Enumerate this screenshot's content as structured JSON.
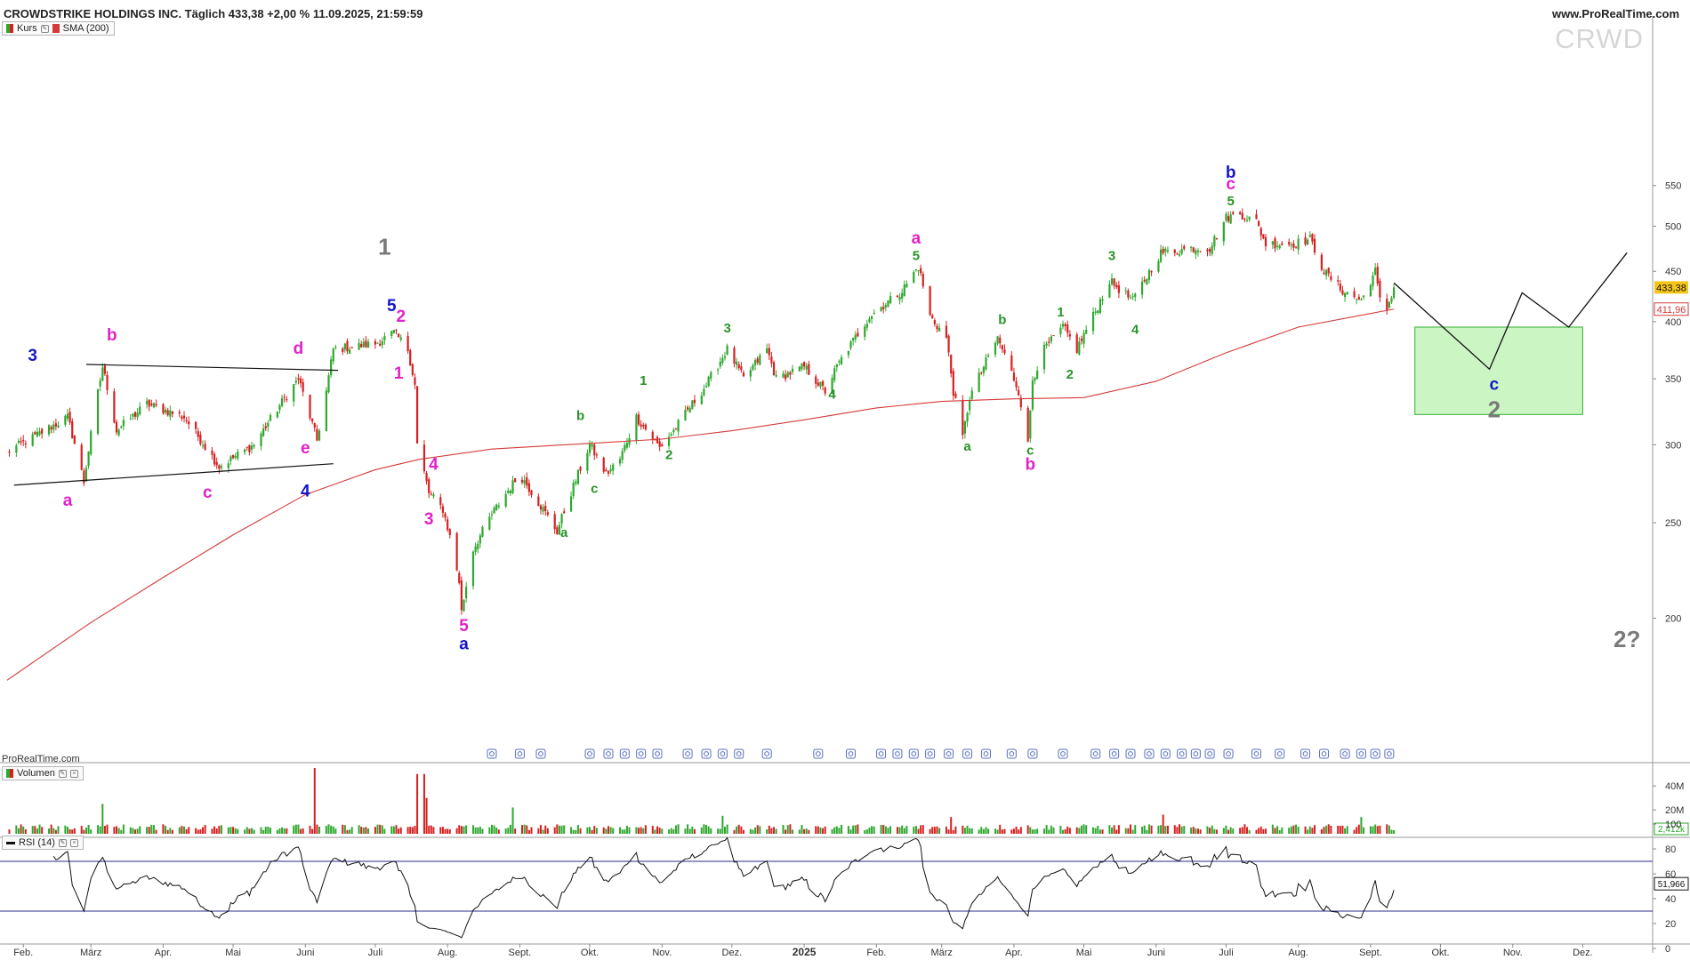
{
  "header": {
    "title": "CROWDSTRIKE HOLDINGS INC. Täglich 433,38 +2,00 % 11.09.2025, 21:59:59",
    "source": "www.ProRealTime.com",
    "watermark": "CRWD",
    "footer_brand": "ProRealTime.com"
  },
  "legend": {
    "price": "Kurs",
    "sma": "SMA (200)",
    "volume": "Volumen",
    "rsi": "RSI (14)"
  },
  "colors": {
    "up": "#2ea82e",
    "down": "#d62020",
    "sma": "#d33a3a",
    "rsi_line": "#111111",
    "rsi_levels": "#2b2b8c",
    "projection_box": "#ccf5c4",
    "projection_box_border": "#33b033",
    "wave_blue": "#1515c8",
    "wave_magenta": "#e022c8",
    "wave_green": "#279427",
    "wave_gray": "#7a7a7a"
  },
  "chart_data": [
    {
      "type": "candlestick",
      "title": "CROWDSTRIKE HOLDINGS INC.",
      "scale": "log",
      "y_ticks": [
        200,
        250,
        300,
        350,
        400,
        450,
        500,
        550
      ],
      "x_months": [
        "Feb.",
        "März",
        "Apr.",
        "Mai",
        "Juni",
        "Juli",
        "Aug.",
        "Sept.",
        "Okt.",
        "Nov.",
        "Dez.",
        "2025",
        "Feb.",
        "März",
        "Apr.",
        "Mai",
        "Juni",
        "Juli",
        "Aug.",
        "Sept.",
        "Okt.",
        "Nov.",
        "Dez."
      ],
      "last_price": "433,38",
      "sma_value": "411,96",
      "series": [
        {
          "name": "Kurs",
          "anchors": [
            [
              "2024-01-25",
              295
            ],
            [
              "2024-02-05",
              305
            ],
            [
              "2024-02-20",
              320
            ],
            [
              "2024-02-27",
              275
            ],
            [
              "2024-03-06",
              360
            ],
            [
              "2024-03-12",
              310
            ],
            [
              "2024-03-25",
              330
            ],
            [
              "2024-04-10",
              320
            ],
            [
              "2024-04-25",
              285
            ],
            [
              "2024-05-10",
              300
            ],
            [
              "2024-05-29",
              350
            ],
            [
              "2024-06-06",
              303
            ],
            [
              "2024-06-10",
              340
            ],
            [
              "2024-06-13",
              375
            ],
            [
              "2024-07-01",
              380
            ],
            [
              "2024-07-09",
              390
            ],
            [
              "2024-07-15",
              375
            ],
            [
              "2024-07-18",
              345
            ],
            [
              "2024-07-19",
              300
            ],
            [
              "2024-07-24",
              268
            ],
            [
              "2024-07-30",
              258
            ],
            [
              "2024-08-02",
              242
            ],
            [
              "2024-08-06",
              218
            ],
            [
              "2024-08-07",
              203
            ],
            [
              "2024-08-12",
              235
            ],
            [
              "2024-08-20",
              255
            ],
            [
              "2024-09-01",
              280
            ],
            [
              "2024-09-10",
              260
            ],
            [
              "2024-09-17",
              245
            ],
            [
              "2024-09-26",
              280
            ],
            [
              "2024-10-01",
              300
            ],
            [
              "2024-10-08",
              280
            ],
            [
              "2024-10-14",
              290
            ],
            [
              "2024-10-21",
              320
            ],
            [
              "2024-10-31",
              298
            ],
            [
              "2024-11-06",
              310
            ],
            [
              "2024-11-20",
              345
            ],
            [
              "2024-11-29",
              375
            ],
            [
              "2024-12-06",
              350
            ],
            [
              "2024-12-16",
              375
            ],
            [
              "2024-12-20",
              350
            ],
            [
              "2025-01-01",
              360
            ],
            [
              "2025-01-10",
              340
            ],
            [
              "2025-01-15",
              360
            ],
            [
              "2025-01-29",
              405
            ],
            [
              "2025-02-12",
              430
            ],
            [
              "2025-02-19",
              455
            ],
            [
              "2025-02-24",
              405
            ],
            [
              "2025-03-03",
              385
            ],
            [
              "2025-03-06",
              340
            ],
            [
              "2025-03-10",
              305
            ],
            [
              "2025-03-13",
              335
            ],
            [
              "2025-03-25",
              385
            ],
            [
              "2025-04-03",
              340
            ],
            [
              "2025-04-07",
              300
            ],
            [
              "2025-04-09",
              350
            ],
            [
              "2025-04-14",
              375
            ],
            [
              "2025-04-22",
              395
            ],
            [
              "2025-04-28",
              375
            ],
            [
              "2025-05-06",
              410
            ],
            [
              "2025-05-12",
              440
            ],
            [
              "2025-05-22",
              420
            ],
            [
              "2025-06-03",
              470
            ],
            [
              "2025-06-17",
              475
            ],
            [
              "2025-06-24",
              475
            ],
            [
              "2025-07-01",
              510
            ],
            [
              "2025-07-07",
              515
            ],
            [
              "2025-07-14",
              505
            ],
            [
              "2025-07-18",
              480
            ],
            [
              "2025-07-30",
              480
            ],
            [
              "2025-08-06",
              485
            ],
            [
              "2025-08-12",
              450
            ],
            [
              "2025-08-20",
              430
            ],
            [
              "2025-08-28",
              420
            ],
            [
              "2025-09-03",
              450
            ],
            [
              "2025-09-05",
              420
            ],
            [
              "2025-09-08",
              412
            ],
            [
              "2025-09-11",
              433.38
            ]
          ]
        },
        {
          "name": "SMA (200)",
          "anchors": [
            [
              "2024-01-25",
              173
            ],
            [
              "2024-03-01",
              198
            ],
            [
              "2024-04-01",
              220
            ],
            [
              "2024-05-01",
              243
            ],
            [
              "2024-06-01",
              267
            ],
            [
              "2024-07-01",
              283
            ],
            [
              "2024-07-20",
              290
            ],
            [
              "2024-08-20",
              297
            ],
            [
              "2024-10-01",
              301
            ],
            [
              "2024-11-01",
              304
            ],
            [
              "2024-12-01",
              310
            ],
            [
              "2025-01-01",
              318
            ],
            [
              "2025-02-01",
              327
            ],
            [
              "2025-03-01",
              332
            ],
            [
              "2025-04-01",
              334
            ],
            [
              "2025-05-01",
              335
            ],
            [
              "2025-06-01",
              348
            ],
            [
              "2025-07-01",
              372
            ],
            [
              "2025-08-01",
              395
            ],
            [
              "2025-09-11",
              411.96
            ]
          ]
        },
        {
          "name": "projection",
          "points": [
            [
              "2025-09-11",
              438
            ],
            [
              "2025-10-22",
              358
            ],
            [
              "2025-11-05",
              428
            ],
            [
              "2025-11-25",
              395
            ],
            [
              "2025-12-20",
              470
            ]
          ]
        }
      ],
      "projection_box": {
        "x": [
          "2025-09-20",
          "2025-12-01"
        ],
        "y": [
          322,
          395
        ]
      },
      "annotations": [
        {
          "text": "3",
          "x": "2024-02-05",
          "y": 365,
          "color": "wave_blue"
        },
        {
          "text": "b",
          "x": "2024-03-10",
          "y": 383,
          "color": "wave_magenta"
        },
        {
          "text": "a",
          "x": "2024-02-20",
          "y": 260,
          "color": "wave_magenta"
        },
        {
          "text": "c",
          "x": "2024-04-20",
          "y": 265,
          "color": "wave_magenta"
        },
        {
          "text": "d",
          "x": "2024-05-29",
          "y": 371,
          "color": "wave_magenta"
        },
        {
          "text": "e",
          "x": "2024-06-01",
          "y": 294,
          "color": "wave_magenta"
        },
        {
          "text": "4",
          "x": "2024-06-01",
          "y": 266,
          "color": "wave_blue"
        },
        {
          "text": "1",
          "x": "2024-07-05",
          "y": 468,
          "color": "wave_gray"
        },
        {
          "text": "5",
          "x": "2024-07-08",
          "y": 410,
          "color": "wave_blue"
        },
        {
          "text": "2",
          "x": "2024-07-12",
          "y": 400,
          "color": "wave_magenta"
        },
        {
          "text": "1",
          "x": "2024-07-11",
          "y": 350,
          "color": "wave_magenta"
        },
        {
          "text": "4",
          "x": "2024-07-26",
          "y": 283,
          "color": "wave_magenta"
        },
        {
          "text": "3",
          "x": "2024-07-24",
          "y": 249,
          "color": "wave_magenta"
        },
        {
          "text": "5",
          "x": "2024-08-08",
          "y": 194,
          "color": "wave_magenta"
        },
        {
          "text": "a",
          "x": "2024-08-08",
          "y": 186,
          "color": "wave_blue"
        },
        {
          "text": "a",
          "x": "2024-09-20",
          "y": 242,
          "color": "wave_green"
        },
        {
          "text": "b",
          "x": "2024-09-27",
          "y": 318,
          "color": "wave_green"
        },
        {
          "text": "c",
          "x": "2024-10-03",
          "y": 268,
          "color": "wave_green"
        },
        {
          "text": "1",
          "x": "2024-10-24",
          "y": 345,
          "color": "wave_green"
        },
        {
          "text": "2",
          "x": "2024-11-04",
          "y": 290,
          "color": "wave_green"
        },
        {
          "text": "3",
          "x": "2024-11-29",
          "y": 390,
          "color": "wave_green"
        },
        {
          "text": "4",
          "x": "2025-01-13",
          "y": 334,
          "color": "wave_green"
        },
        {
          "text": "a",
          "x": "2025-02-18",
          "y": 480,
          "color": "wave_magenta"
        },
        {
          "text": "5",
          "x": "2025-02-18",
          "y": 462,
          "color": "wave_green"
        },
        {
          "text": "a",
          "x": "2025-03-12",
          "y": 296,
          "color": "wave_green"
        },
        {
          "text": "b",
          "x": "2025-03-27",
          "y": 398,
          "color": "wave_green"
        },
        {
          "text": "c",
          "x": "2025-04-08",
          "y": 293,
          "color": "wave_green"
        },
        {
          "text": "b",
          "x": "2025-04-08",
          "y": 283,
          "color": "wave_magenta"
        },
        {
          "text": "1",
          "x": "2025-04-21",
          "y": 405,
          "color": "wave_green"
        },
        {
          "text": "2",
          "x": "2025-04-25",
          "y": 350,
          "color": "wave_green"
        },
        {
          "text": "3",
          "x": "2025-05-13",
          "y": 462,
          "color": "wave_green"
        },
        {
          "text": "4",
          "x": "2025-05-23",
          "y": 389,
          "color": "wave_green"
        },
        {
          "text": "b",
          "x": "2025-07-03",
          "y": 560,
          "color": "wave_blue"
        },
        {
          "text": "c",
          "x": "2025-07-03",
          "y": 545,
          "color": "wave_magenta"
        },
        {
          "text": "5",
          "x": "2025-07-03",
          "y": 525,
          "color": "wave_green"
        },
        {
          "text": "c",
          "x": "2025-10-24",
          "y": 341,
          "color": "wave_blue"
        },
        {
          "text": "2",
          "x": "2025-10-24",
          "y": 320,
          "color": "wave_gray"
        },
        {
          "text": "2?",
          "x": "2025-12-20",
          "y": 187,
          "color": "wave_gray"
        }
      ]
    },
    {
      "type": "bar",
      "title": "Volumen",
      "y_ticks": [
        "40M",
        "20M"
      ],
      "last_value": "2,412k"
    },
    {
      "type": "line",
      "title": "RSI (14)",
      "y_ticks": [
        100,
        80,
        60,
        40,
        20,
        0
      ],
      "levels": [
        70,
        30
      ],
      "last_value": "51,966"
    }
  ]
}
